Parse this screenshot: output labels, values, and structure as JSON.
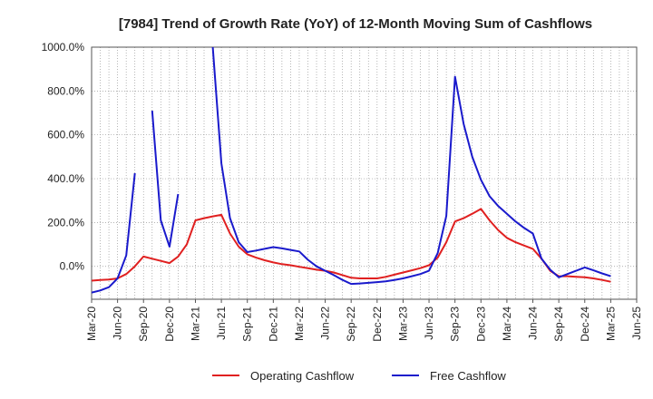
{
  "chart_data": {
    "type": "line",
    "title": "[7984]  Trend of Growth Rate (YoY) of 12-Month Moving Sum of Cashflows",
    "xlabel": "",
    "ylabel": "",
    "ylim": [
      -150,
      1000
    ],
    "yticks": [
      0,
      200,
      400,
      600,
      800,
      1000
    ],
    "ytick_labels": [
      "0.0%",
      "200.0%",
      "400.0%",
      "600.0%",
      "800.0%",
      "1000.0%"
    ],
    "x_tick_labels": [
      "Mar-20",
      "Jun-20",
      "Sep-20",
      "Dec-20",
      "Mar-21",
      "Jun-21",
      "Sep-21",
      "Dec-21",
      "Mar-22",
      "Jun-22",
      "Sep-22",
      "Dec-22",
      "Mar-23",
      "Jun-23",
      "Sep-23",
      "Dec-23",
      "Mar-24",
      "Jun-24",
      "Sep-24",
      "Dec-24",
      "Mar-25",
      "Jun-25"
    ],
    "x_start": "2020-03",
    "x_end": "2025-06",
    "grid": true,
    "legend_position": "bottom",
    "series": [
      {
        "name": "Operating Cashflow",
        "color": "#e02020",
        "points": [
          [
            "2020-03",
            -65
          ],
          [
            "2020-04",
            -62
          ],
          [
            "2020-05",
            -60
          ],
          [
            "2020-06",
            -55
          ],
          [
            "2020-07",
            -35
          ],
          [
            "2020-08",
            0
          ],
          [
            "2020-09",
            45
          ],
          [
            "2020-10",
            35
          ],
          [
            "2020-11",
            25
          ],
          [
            "2020-12",
            15
          ],
          [
            "2021-01",
            45
          ],
          [
            "2021-02",
            100
          ],
          [
            "2021-03",
            210
          ],
          [
            "2021-04",
            220
          ],
          [
            "2021-05",
            228
          ],
          [
            "2021-06",
            235
          ],
          [
            "2021-07",
            150
          ],
          [
            "2021-08",
            90
          ],
          [
            "2021-09",
            55
          ],
          [
            "2021-10",
            40
          ],
          [
            "2021-11",
            28
          ],
          [
            "2021-12",
            18
          ],
          [
            "2022-01",
            10
          ],
          [
            "2022-02",
            5
          ],
          [
            "2022-03",
            -2
          ],
          [
            "2022-04",
            -8
          ],
          [
            "2022-05",
            -15
          ],
          [
            "2022-06",
            -20
          ],
          [
            "2022-07",
            -28
          ],
          [
            "2022-08",
            -40
          ],
          [
            "2022-09",
            -52
          ],
          [
            "2022-10",
            -55
          ],
          [
            "2022-11",
            -55
          ],
          [
            "2022-12",
            -55
          ],
          [
            "2023-01",
            -48
          ],
          [
            "2023-02",
            -38
          ],
          [
            "2023-03",
            -28
          ],
          [
            "2023-04",
            -18
          ],
          [
            "2023-05",
            -8
          ],
          [
            "2023-06",
            5
          ],
          [
            "2023-07",
            40
          ],
          [
            "2023-08",
            110
          ],
          [
            "2023-09",
            205
          ],
          [
            "2023-10",
            220
          ],
          [
            "2023-11",
            240
          ],
          [
            "2023-12",
            262
          ],
          [
            "2024-01",
            210
          ],
          [
            "2024-02",
            165
          ],
          [
            "2024-03",
            130
          ],
          [
            "2024-04",
            110
          ],
          [
            "2024-05",
            95
          ],
          [
            "2024-06",
            80
          ],
          [
            "2024-07",
            35
          ],
          [
            "2024-08",
            -20
          ],
          [
            "2024-09",
            -45
          ],
          [
            "2024-10",
            -45
          ],
          [
            "2024-11",
            -48
          ],
          [
            "2024-12",
            -50
          ],
          [
            "2025-01",
            -55
          ],
          [
            "2025-02",
            -62
          ],
          [
            "2025-03",
            -70
          ]
        ]
      },
      {
        "name": "Free Cashflow",
        "color": "#1a1acc",
        "segments": [
          [
            [
              "2020-03",
              -120
            ],
            [
              "2020-04",
              -110
            ],
            [
              "2020-05",
              -95
            ],
            [
              "2020-06",
              -55
            ],
            [
              "2020-07",
              50
            ],
            [
              "2020-08",
              425
            ]
          ],
          [
            [
              "2020-10",
              710
            ],
            [
              "2020-11",
              210
            ],
            [
              "2020-12",
              90
            ],
            [
              "2021-01",
              330
            ]
          ],
          [
            [
              "2021-05",
              1000
            ],
            [
              "2021-06",
              470
            ],
            [
              "2021-07",
              220
            ],
            [
              "2021-08",
              110
            ],
            [
              "2021-09",
              65
            ],
            [
              "2021-10",
              72
            ],
            [
              "2021-11",
              80
            ],
            [
              "2021-12",
              88
            ],
            [
              "2022-01",
              82
            ],
            [
              "2022-02",
              75
            ],
            [
              "2022-03",
              68
            ],
            [
              "2022-04",
              30
            ],
            [
              "2022-05",
              0
            ],
            [
              "2022-06",
              -20
            ],
            [
              "2022-07",
              -40
            ],
            [
              "2022-08",
              -62
            ],
            [
              "2022-09",
              -80
            ],
            [
              "2022-10",
              -78
            ],
            [
              "2022-11",
              -75
            ],
            [
              "2022-12",
              -72
            ],
            [
              "2023-01",
              -68
            ],
            [
              "2023-02",
              -62
            ],
            [
              "2023-03",
              -55
            ],
            [
              "2023-04",
              -45
            ],
            [
              "2023-05",
              -35
            ],
            [
              "2023-06",
              -20
            ],
            [
              "2023-07",
              60
            ],
            [
              "2023-08",
              230
            ],
            [
              "2023-09",
              865
            ],
            [
              "2023-10",
              650
            ],
            [
              "2023-11",
              500
            ],
            [
              "2023-12",
              395
            ],
            [
              "2024-01",
              320
            ],
            [
              "2024-02",
              275
            ],
            [
              "2024-03",
              240
            ],
            [
              "2024-04",
              205
            ],
            [
              "2024-05",
              175
            ],
            [
              "2024-06",
              150
            ],
            [
              "2024-07",
              35
            ],
            [
              "2024-08",
              -15
            ],
            [
              "2024-09",
              -50
            ],
            [
              "2024-10",
              -35
            ],
            [
              "2024-11",
              -20
            ],
            [
              "2024-12",
              -5
            ],
            [
              "2025-01",
              -18
            ],
            [
              "2025-02",
              -32
            ],
            [
              "2025-03",
              -45
            ]
          ]
        ]
      }
    ]
  }
}
